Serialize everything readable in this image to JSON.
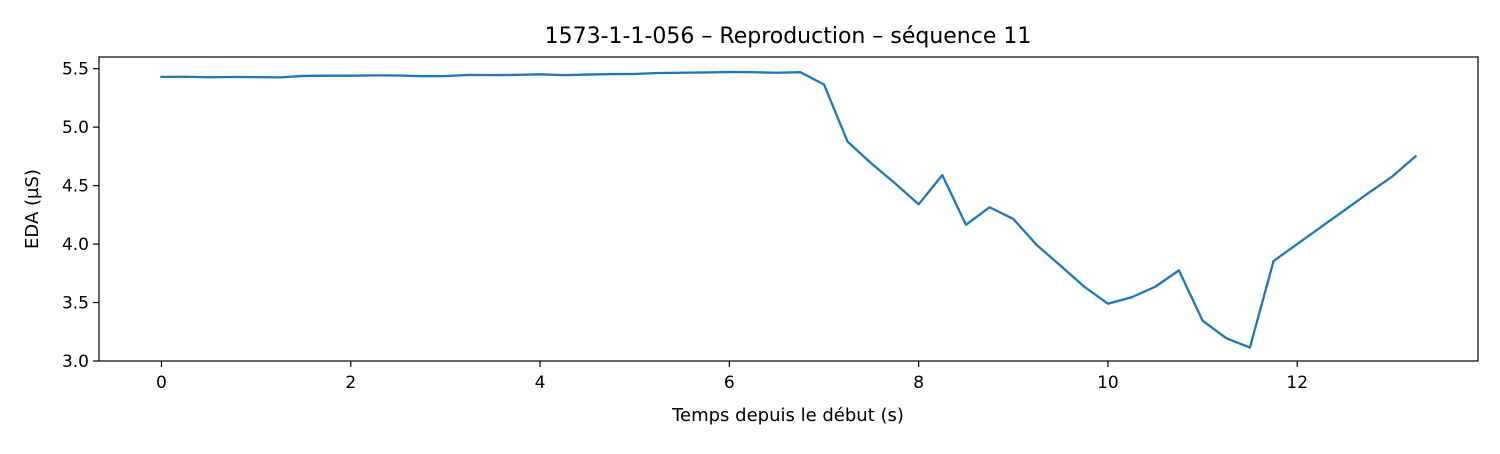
{
  "chart_data": {
    "type": "line",
    "title": "1573-1-1-056 – Reproduction – séquence 11",
    "xlabel": "Temps depuis le début (s)",
    "ylabel": "EDA (µS)",
    "xlim": [
      -0.66,
      13.91
    ],
    "ylim": [
      3.0,
      5.6
    ],
    "xticks": [
      0,
      2,
      4,
      6,
      8,
      10,
      12
    ],
    "yticks": [
      3.0,
      3.5,
      4.0,
      4.5,
      5.0,
      5.5
    ],
    "xtick_labels": [
      "0",
      "2",
      "4",
      "6",
      "8",
      "10",
      "12"
    ],
    "ytick_labels": [
      "3.0",
      "3.5",
      "4.0",
      "4.5",
      "5.0",
      "5.5"
    ],
    "grid": false,
    "line_color": "#1f77b4",
    "series": [
      {
        "x": [
          0,
          0.25,
          0.5,
          0.75,
          1.0,
          1.25,
          1.5,
          1.75,
          2.0,
          2.25,
          2.5,
          2.75,
          3.0,
          3.25,
          3.5,
          3.75,
          4.0,
          4.25,
          4.5,
          4.75,
          5.0,
          5.25,
          5.5,
          5.75,
          6.0,
          6.25,
          6.5,
          6.75,
          7.0,
          7.25,
          7.5,
          7.75,
          8.0,
          8.25,
          8.5,
          8.75,
          9.0,
          9.25,
          9.5,
          9.75,
          10.0,
          10.25,
          10.5,
          10.75,
          11.0,
          11.25,
          11.5,
          11.75,
          12.0,
          12.25,
          12.5,
          12.75,
          13.0,
          13.25
        ],
        "y": [
          5.43,
          5.431,
          5.427,
          5.429,
          5.428,
          5.426,
          5.438,
          5.44,
          5.44,
          5.443,
          5.442,
          5.436,
          5.437,
          5.447,
          5.445,
          5.447,
          5.452,
          5.445,
          5.45,
          5.454,
          5.455,
          5.463,
          5.465,
          5.468,
          5.472,
          5.47,
          5.465,
          5.47,
          5.365,
          4.875,
          4.69,
          4.52,
          4.34,
          4.59,
          4.165,
          4.315,
          4.215,
          3.99,
          3.815,
          3.635,
          3.49,
          3.545,
          3.635,
          3.775,
          3.345,
          3.195,
          3.115,
          3.855,
          4.0,
          4.145,
          4.29,
          4.435,
          4.575,
          4.75
        ]
      }
    ]
  }
}
